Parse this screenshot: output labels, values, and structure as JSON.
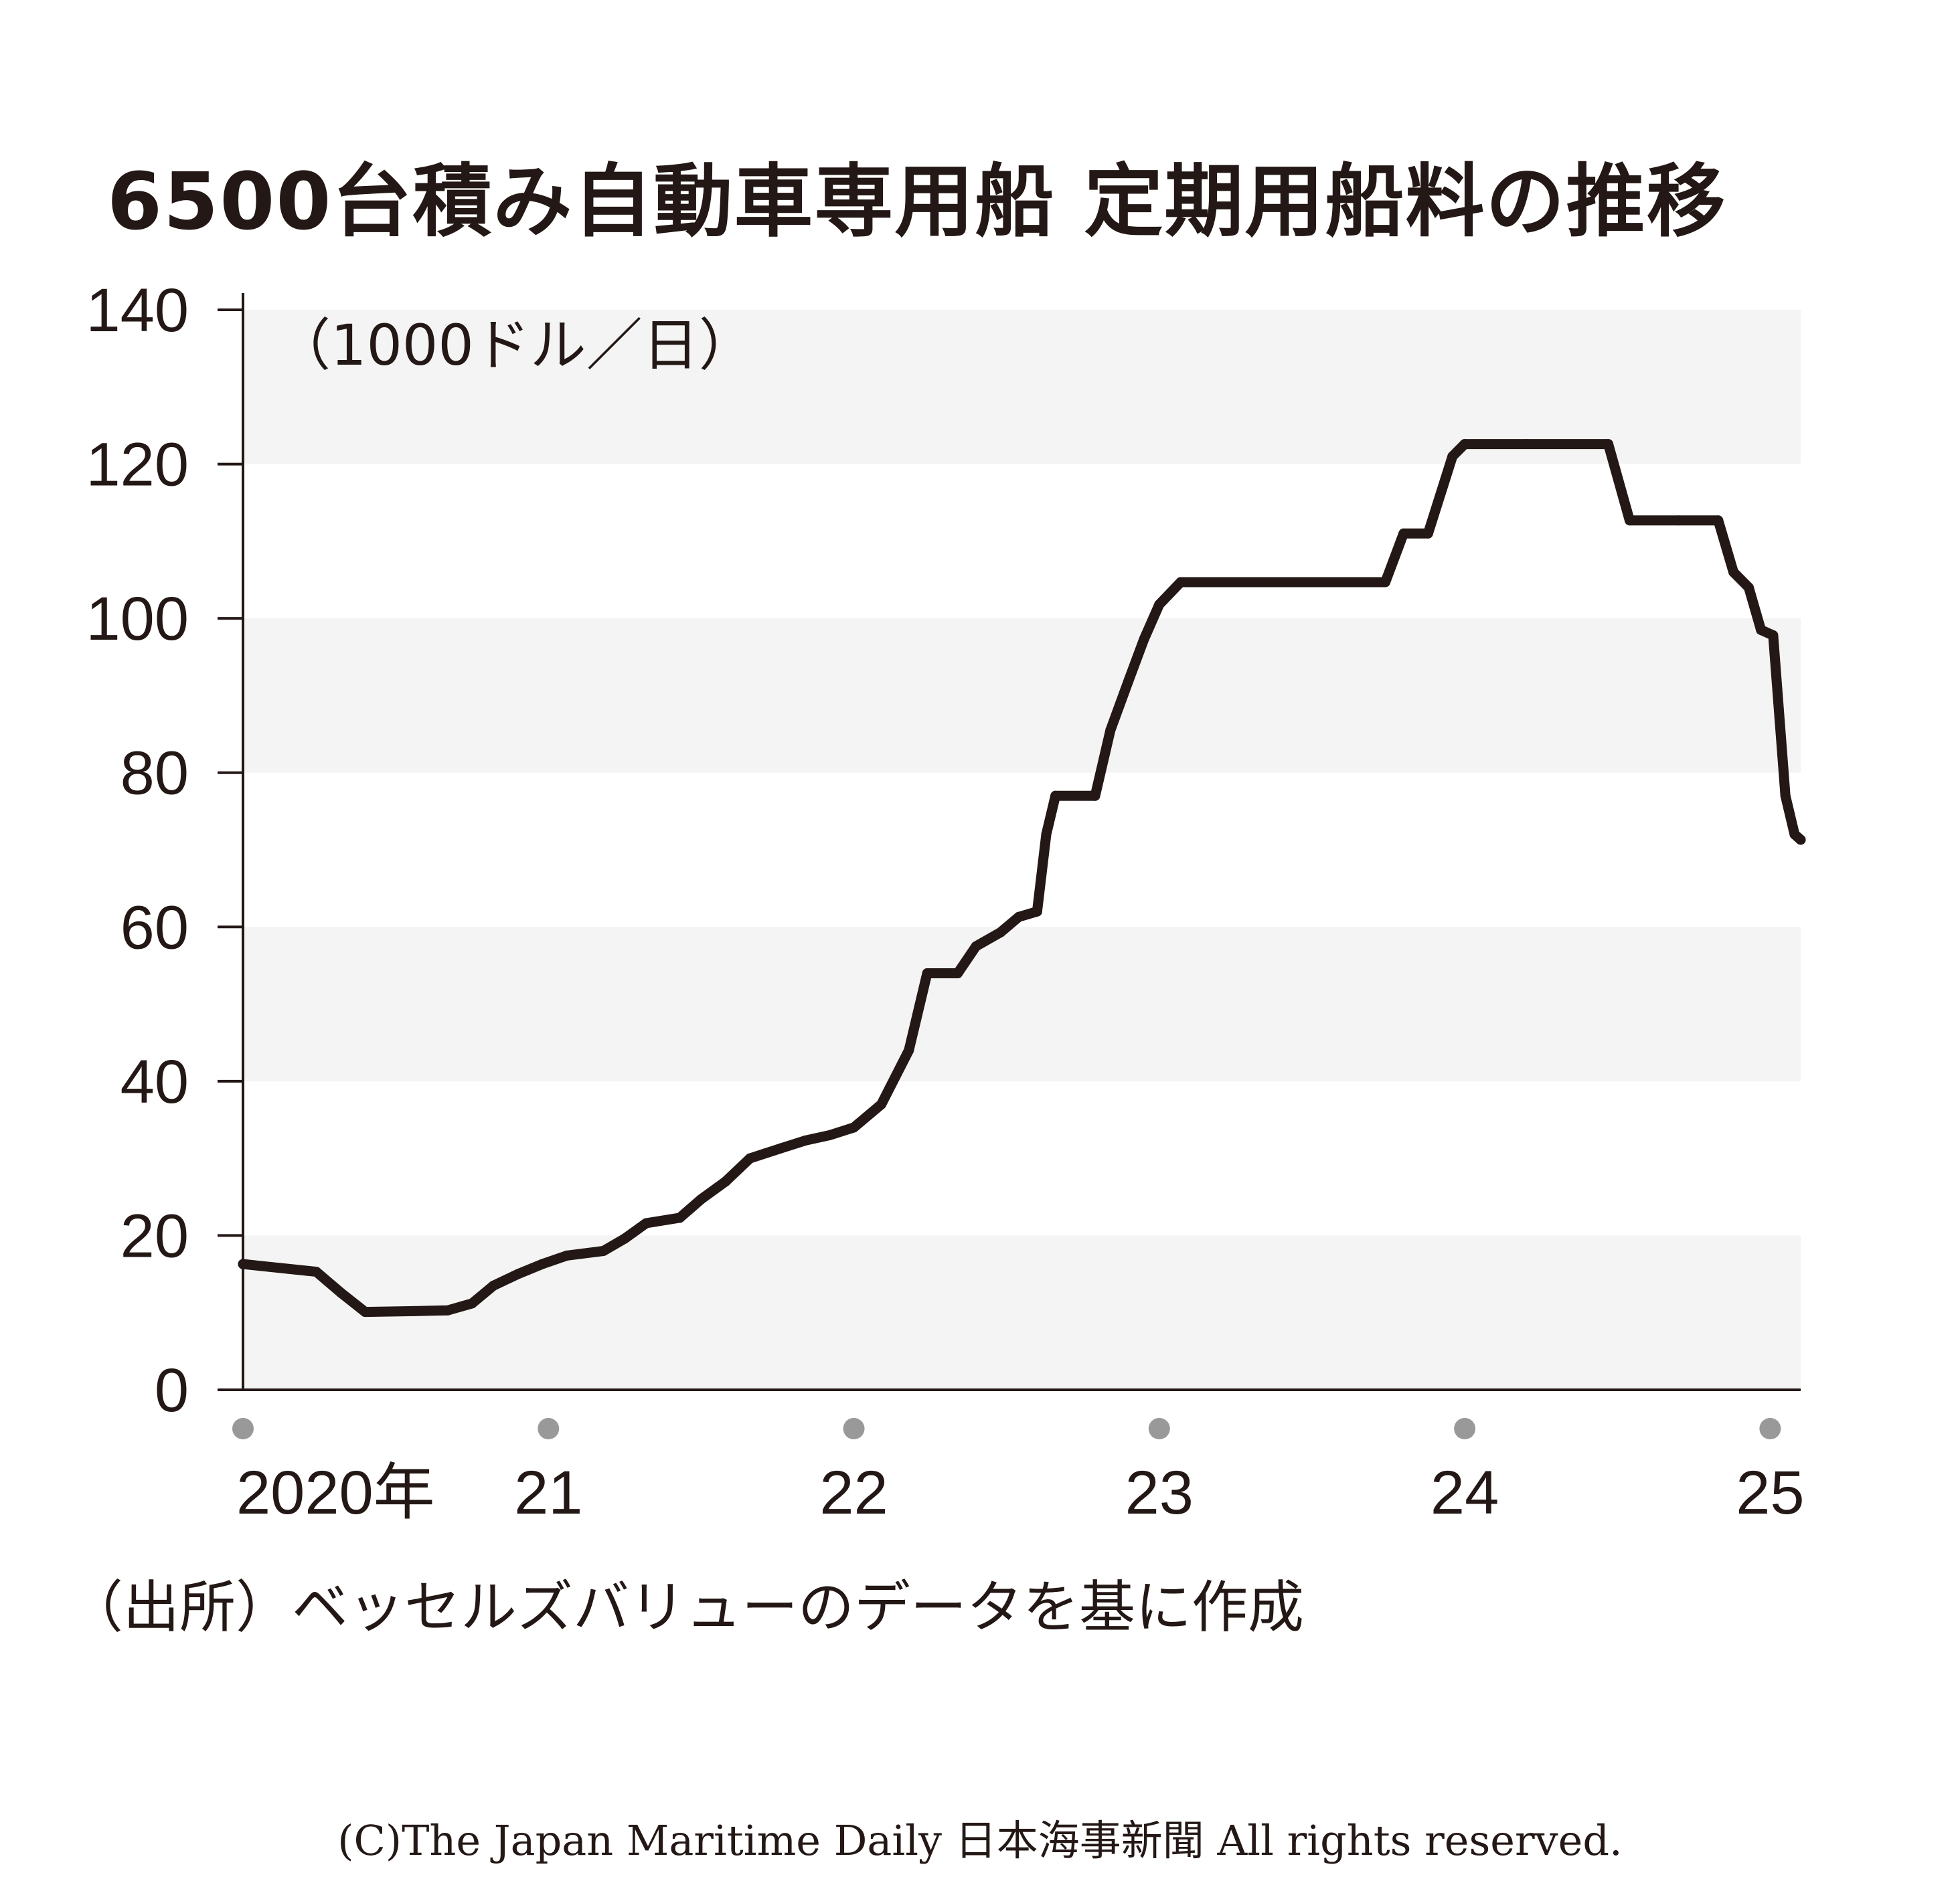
{
  "chart_data": {
    "type": "line",
    "title": "6500台積み自動車専用船 定期用船料の推移",
    "unit": "（1000ドル／日）",
    "ylim": [
      0,
      140
    ],
    "yticks": [
      0,
      20,
      40,
      60,
      80,
      100,
      120,
      140
    ],
    "xlim": [
      2020,
      2025.1
    ],
    "xticks": [
      {
        "x": 2020,
        "label": "2020年"
      },
      {
        "x": 2021,
        "label": "21"
      },
      {
        "x": 2022,
        "label": "22"
      },
      {
        "x": 2023,
        "label": "23"
      },
      {
        "x": 2024,
        "label": "24"
      },
      {
        "x": 2025,
        "label": "25"
      }
    ],
    "grid": "alternating horizontal bands",
    "series": [
      {
        "points": [
          [
            2020.0,
            16.3
          ],
          [
            2020.24,
            15.3
          ],
          [
            2020.32,
            12.6
          ],
          [
            2020.4,
            10.1
          ],
          [
            2020.56,
            10.2
          ],
          [
            2020.67,
            10.3
          ],
          [
            2020.75,
            11.2
          ],
          [
            2020.82,
            13.5
          ],
          [
            2020.9,
            15.0
          ],
          [
            2020.98,
            16.3
          ],
          [
            2021.06,
            17.4
          ],
          [
            2021.18,
            18.0
          ],
          [
            2021.25,
            19.6
          ],
          [
            2021.32,
            21.6
          ],
          [
            2021.43,
            22.3
          ],
          [
            2021.5,
            24.7
          ],
          [
            2021.58,
            27.0
          ],
          [
            2021.66,
            30.0
          ],
          [
            2021.76,
            31.3
          ],
          [
            2021.84,
            32.3
          ],
          [
            2021.92,
            33.0
          ],
          [
            2022.0,
            34.0
          ],
          [
            2022.09,
            37.0
          ],
          [
            2022.18,
            44.0
          ],
          [
            2022.24,
            54.0
          ],
          [
            2022.34,
            54.0
          ],
          [
            2022.4,
            57.5
          ],
          [
            2022.48,
            59.3
          ],
          [
            2022.54,
            61.3
          ],
          [
            2022.6,
            62.0
          ],
          [
            2022.63,
            72.0
          ],
          [
            2022.66,
            77.0
          ],
          [
            2022.79,
            77.0
          ],
          [
            2022.84,
            85.5
          ],
          [
            2022.9,
            92.0
          ],
          [
            2022.95,
            97.3
          ],
          [
            2023.0,
            101.8
          ],
          [
            2023.07,
            104.7
          ],
          [
            2023.15,
            104.7
          ],
          [
            2023.4,
            104.7
          ],
          [
            2023.6,
            104.7
          ],
          [
            2023.74,
            104.7
          ],
          [
            2023.8,
            111.0
          ],
          [
            2023.88,
            111.0
          ],
          [
            2023.96,
            121.0
          ],
          [
            2024.0,
            122.6
          ],
          [
            2024.2,
            122.6
          ],
          [
            2024.47,
            122.6
          ],
          [
            2024.54,
            112.7
          ],
          [
            2024.7,
            112.7
          ],
          [
            2024.83,
            112.7
          ],
          [
            2024.88,
            106.0
          ],
          [
            2024.93,
            104.0
          ],
          [
            2024.97,
            98.5
          ],
          [
            2025.01,
            97.8
          ],
          [
            2025.05,
            77.0
          ],
          [
            2025.08,
            72.0
          ],
          [
            2025.1,
            71.3
          ]
        ]
      }
    ]
  },
  "source_note": "（出所）ベッセルズバリューのデータを基に作成",
  "copyright": "(C)The Japan Maritime Daily 日本海事新聞 All rights reserved."
}
